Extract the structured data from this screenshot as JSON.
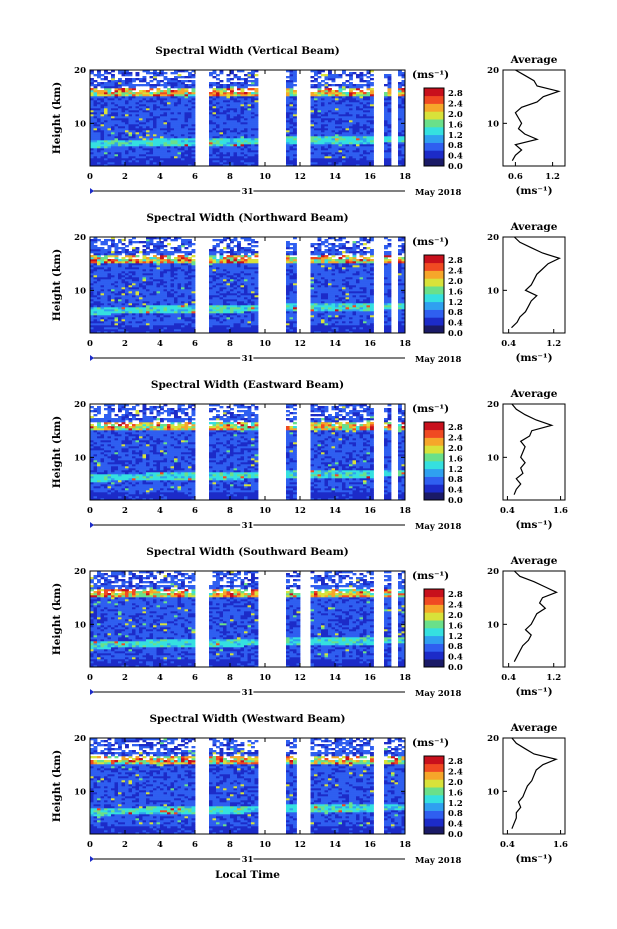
{
  "figure": {
    "xlabel": "Local Time",
    "day_label": "31",
    "month_label": "May 2018",
    "colorbar_unit": "(ms⁻¹)",
    "colorbar_ticks": [
      "2.8",
      "2.4",
      "2.0",
      "1.6",
      "1.2",
      "0.8",
      "0.4",
      "0.0"
    ],
    "avg_title": "Average",
    "avg_xlabel": "(ms⁻¹)",
    "height_label": "Height (km)",
    "palette": [
      "#1a1a66",
      "#1c2bc8",
      "#2f5ff0",
      "#2fa0f0",
      "#35e0e0",
      "#6ae08a",
      "#d8e23a",
      "#f6a62a",
      "#f04a22",
      "#c8101c"
    ]
  },
  "chart_data": [
    {
      "type": "heatmap",
      "title": "Spectral Width (Vertical Beam)",
      "xlabel": "Local Time",
      "ylabel": "Height (km)",
      "xlim": [
        0,
        18
      ],
      "ylim": [
        2,
        20
      ],
      "x_ticks": [
        "0",
        "2",
        "4",
        "6",
        "8",
        "10",
        "12",
        "14",
        "16",
        "18"
      ],
      "y_ticks": [
        "10",
        "20"
      ],
      "data_gaps_hours": [
        [
          6.0,
          6.8
        ],
        [
          9.6,
          11.2
        ],
        [
          11.9,
          12.6
        ],
        [
          16.2,
          16.7
        ],
        [
          17.3,
          17.6
        ]
      ],
      "colorbar": {
        "unit": "ms-1",
        "range": [
          0.0,
          3.0
        ]
      },
      "average_profile": {
        "title": "Average",
        "xlabel": "(ms⁻¹)",
        "x_ticks": [
          "0.6",
          "1.2"
        ],
        "y_ticks": [
          "10",
          "20"
        ],
        "xlim": [
          0.4,
          1.4
        ],
        "height": [
          3,
          4,
          5,
          6,
          7,
          8,
          9,
          10,
          11,
          12,
          13,
          14,
          15,
          16,
          17,
          18,
          19,
          20
        ],
        "values": [
          0.55,
          0.6,
          0.7,
          0.6,
          0.95,
          0.75,
          0.65,
          0.7,
          0.65,
          0.6,
          0.7,
          0.95,
          1.05,
          1.3,
          0.95,
          0.9,
          0.75,
          0.6
        ]
      }
    },
    {
      "type": "heatmap",
      "title": "Spectral Width (Northward Beam)",
      "xlabel": "Local Time",
      "ylabel": "Height (km)",
      "xlim": [
        0,
        18
      ],
      "ylim": [
        2,
        20
      ],
      "x_ticks": [
        "0",
        "2",
        "4",
        "6",
        "8",
        "10",
        "12",
        "14",
        "16",
        "18"
      ],
      "y_ticks": [
        "10",
        "20"
      ],
      "data_gaps_hours": [
        [
          6.0,
          6.8
        ],
        [
          9.6,
          11.2
        ],
        [
          11.9,
          12.6
        ],
        [
          16.2,
          16.7
        ],
        [
          17.3,
          17.6
        ]
      ],
      "colorbar": {
        "unit": "ms-1",
        "range": [
          0.0,
          3.0
        ]
      },
      "average_profile": {
        "title": "Average",
        "xlabel": "(ms⁻¹)",
        "x_ticks": [
          "0.4",
          "1.2"
        ],
        "y_ticks": [
          "10",
          "20"
        ],
        "xlim": [
          0.3,
          1.4
        ],
        "height": [
          3,
          4,
          5,
          6,
          7,
          8,
          9,
          10,
          11,
          12,
          13,
          14,
          15,
          16,
          17,
          18,
          19,
          20
        ],
        "values": [
          0.45,
          0.55,
          0.6,
          0.7,
          0.75,
          0.8,
          0.9,
          0.7,
          0.8,
          0.85,
          0.9,
          1.0,
          1.1,
          1.3,
          1.0,
          0.8,
          0.6,
          0.5
        ]
      }
    },
    {
      "type": "heatmap",
      "title": "Spectral Width (Eastward Beam)",
      "xlabel": "Local Time",
      "ylabel": "Height (km)",
      "xlim": [
        0,
        18
      ],
      "ylim": [
        2,
        20
      ],
      "x_ticks": [
        "0",
        "2",
        "4",
        "6",
        "8",
        "10",
        "12",
        "14",
        "16",
        "18"
      ],
      "y_ticks": [
        "10",
        "20"
      ],
      "data_gaps_hours": [
        [
          6.0,
          6.8
        ],
        [
          9.6,
          11.2
        ],
        [
          11.9,
          12.6
        ],
        [
          16.2,
          16.7
        ],
        [
          17.3,
          17.6
        ]
      ],
      "colorbar": {
        "unit": "ms-1",
        "range": [
          0.0,
          3.0
        ]
      },
      "average_profile": {
        "title": "Average",
        "xlabel": "(ms⁻¹)",
        "x_ticks": [
          "0.4",
          "1.6"
        ],
        "y_ticks": [
          "10",
          "20"
        ],
        "xlim": [
          0.3,
          1.7
        ],
        "height": [
          3,
          4,
          5,
          6,
          7,
          8,
          9,
          10,
          11,
          12,
          13,
          14,
          15,
          16,
          17,
          18,
          19,
          20
        ],
        "values": [
          0.55,
          0.6,
          0.7,
          0.6,
          0.75,
          0.7,
          0.8,
          0.7,
          0.75,
          0.8,
          0.7,
          0.9,
          0.95,
          1.4,
          1.05,
          0.8,
          0.6,
          0.5
        ]
      }
    },
    {
      "type": "heatmap",
      "title": "Spectral Width (Southward Beam)",
      "xlabel": "Local Time",
      "ylabel": "Height (km)",
      "xlim": [
        0,
        18
      ],
      "ylim": [
        2,
        20
      ],
      "x_ticks": [
        "0",
        "2",
        "4",
        "6",
        "8",
        "10",
        "12",
        "14",
        "16",
        "18"
      ],
      "y_ticks": [
        "10",
        "20"
      ],
      "data_gaps_hours": [
        [
          6.0,
          6.8
        ],
        [
          9.6,
          11.2
        ],
        [
          12.0,
          12.5
        ],
        [
          16.2,
          16.7
        ],
        [
          17.3,
          17.6
        ]
      ],
      "colorbar": {
        "unit": "ms-1",
        "range": [
          0.0,
          3.0
        ]
      },
      "average_profile": {
        "title": "Average",
        "xlabel": "(ms⁻¹)",
        "x_ticks": [
          "0.4",
          "1.2"
        ],
        "y_ticks": [
          "10",
          "20"
        ],
        "xlim": [
          0.3,
          1.4
        ],
        "height": [
          3,
          4,
          5,
          6,
          7,
          8,
          9,
          10,
          11,
          12,
          13,
          14,
          15,
          16,
          17,
          18,
          19,
          20
        ],
        "values": [
          0.5,
          0.55,
          0.6,
          0.65,
          0.75,
          0.8,
          0.7,
          0.8,
          0.85,
          0.9,
          1.05,
          0.95,
          1.0,
          1.25,
          1.05,
          0.85,
          0.6,
          0.5
        ]
      }
    },
    {
      "type": "heatmap",
      "title": "Spectral Width (Westward Beam)",
      "xlabel": "Local Time",
      "ylabel": "Height (km)",
      "xlim": [
        0,
        18
      ],
      "ylim": [
        2,
        20
      ],
      "x_ticks": [
        "0",
        "2",
        "4",
        "6",
        "8",
        "10",
        "12",
        "14",
        "16",
        "18"
      ],
      "y_ticks": [
        "10",
        "20"
      ],
      "data_gaps_hours": [
        [
          6.0,
          6.8
        ],
        [
          9.6,
          11.2
        ],
        [
          11.9,
          12.6
        ],
        [
          16.2,
          16.7
        ]
      ],
      "colorbar": {
        "unit": "ms-1",
        "range": [
          0.0,
          3.0
        ]
      },
      "average_profile": {
        "title": "Average",
        "xlabel": "(ms⁻¹)",
        "x_ticks": [
          "0.4",
          "1.6"
        ],
        "y_ticks": [
          "10",
          "20"
        ],
        "xlim": [
          0.3,
          1.7
        ],
        "height": [
          3,
          4,
          5,
          6,
          7,
          8,
          9,
          10,
          11,
          12,
          13,
          14,
          15,
          16,
          17,
          18,
          19,
          20
        ],
        "values": [
          0.5,
          0.55,
          0.6,
          0.6,
          0.7,
          0.65,
          0.75,
          0.8,
          0.85,
          0.95,
          1.0,
          1.05,
          1.2,
          1.5,
          1.0,
          0.8,
          0.6,
          0.5
        ]
      }
    }
  ]
}
